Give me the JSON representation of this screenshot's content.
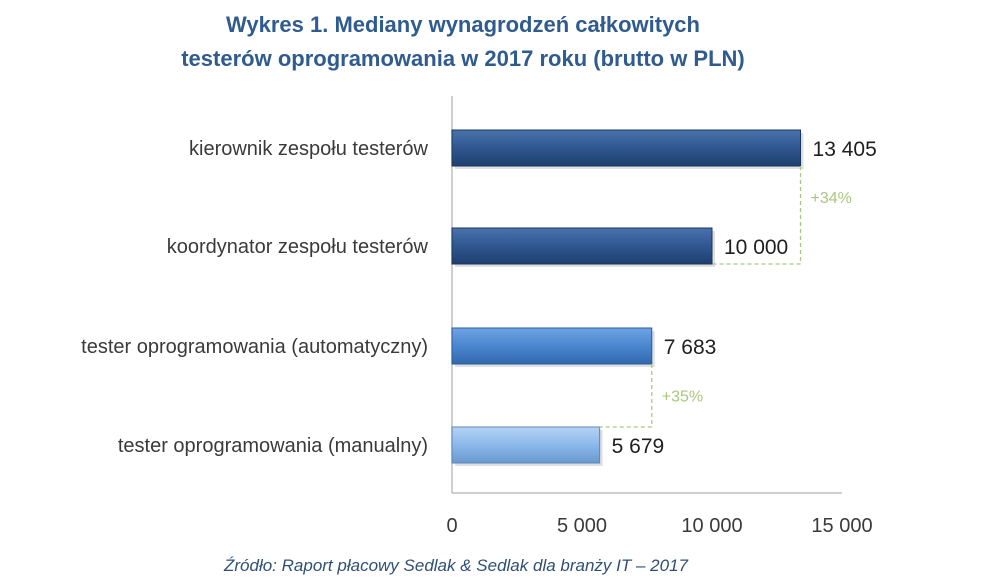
{
  "chart_data": {
    "type": "bar",
    "orientation": "horizontal",
    "title": "Wykres 1. Mediany wynagrodzeń całkowitych testerów oprogramowania w 2017 roku (brutto w PLN)",
    "title_lines": [
      "Wykres 1. Mediany wynagrodzeń całkowitych",
      "testerów oprogramowania w 2017 roku (brutto w PLN)"
    ],
    "categories": [
      "kierownik zespołu testerów",
      "koordynator zespołu testerów",
      "tester oprogramowania (automatyczny)",
      "tester oprogramowania (manualny)"
    ],
    "values": [
      13405,
      10000,
      7683,
      5679
    ],
    "value_labels": [
      "13 405",
      "10 000",
      "7 683",
      "5 679"
    ],
    "bar_colors": [
      "#2c548a",
      "#2c548a",
      "#4a86d0",
      "#8bb8ea"
    ],
    "xlim": [
      0,
      15000
    ],
    "xticks": [
      0,
      5000,
      10000,
      15000
    ],
    "xtick_labels": [
      "0",
      "5 000",
      "10 000",
      "15 000"
    ],
    "xlabel": "",
    "ylabel": "",
    "grid": false,
    "annotations": [
      {
        "text": "+34%",
        "from_index": 0,
        "to_index": 1
      },
      {
        "text": "+35%",
        "from_index": 2,
        "to_index": 3
      }
    ],
    "annotation_color": "#a9c77e",
    "source": "Źródło: Raport płacowy Sedlak & Sedlak dla branży IT – 2017"
  }
}
